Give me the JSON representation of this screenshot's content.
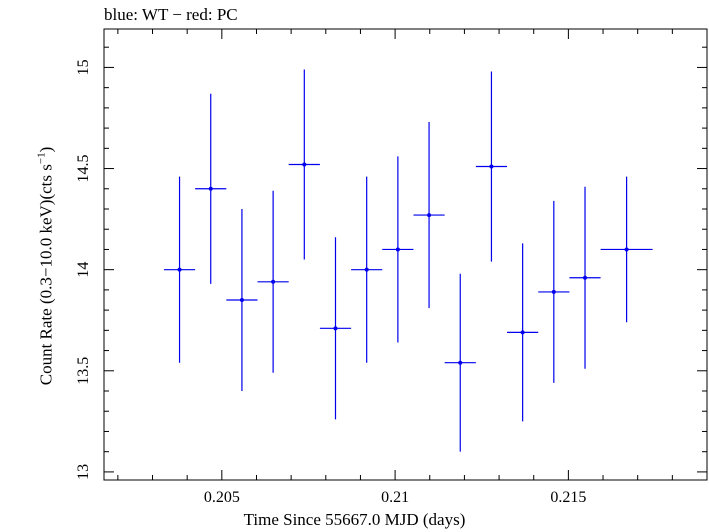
{
  "chart_data": {
    "type": "scatter",
    "title": "blue: WT − red: PC",
    "xlabel": "Time Since 55667.0 MJD (days)",
    "ylabel_main": "Count Rate (0.3−10.0 keV)(cts s",
    "ylabel_sup": "−1",
    "ylabel_end": ")",
    "xlim": [
      0.2016,
      0.219
    ],
    "ylim": [
      12.96,
      15.19
    ],
    "xticks": [
      0.205,
      0.21,
      0.215
    ],
    "xtick_labels": [
      "0.205",
      "0.21",
      "0.215"
    ],
    "yticks": [
      13,
      13.5,
      14,
      14.5,
      15
    ],
    "ytick_labels": [
      "13",
      "13.5",
      "14",
      "14.5",
      "15"
    ],
    "series": [
      {
        "color": "#0000ee",
        "points": [
          {
            "x": 0.20378,
            "y": 14.0,
            "xerr": 0.00045,
            "yerr": 0.46
          },
          {
            "x": 0.20468,
            "y": 14.4,
            "xerr": 0.00045,
            "yerr": 0.47
          },
          {
            "x": 0.20558,
            "y": 13.85,
            "xerr": 0.00045,
            "yerr": 0.45
          },
          {
            "x": 0.20648,
            "y": 13.94,
            "xerr": 0.00045,
            "yerr": 0.45
          },
          {
            "x": 0.20738,
            "y": 14.52,
            "xerr": 0.00045,
            "yerr": 0.47
          },
          {
            "x": 0.20828,
            "y": 13.71,
            "xerr": 0.00045,
            "yerr": 0.45
          },
          {
            "x": 0.20918,
            "y": 14.0,
            "xerr": 0.00045,
            "yerr": 0.46
          },
          {
            "x": 0.21008,
            "y": 14.1,
            "xerr": 0.00045,
            "yerr": 0.46
          },
          {
            "x": 0.21098,
            "y": 14.27,
            "xerr": 0.00045,
            "yerr": 0.46
          },
          {
            "x": 0.21188,
            "y": 13.54,
            "xerr": 0.00045,
            "yerr": 0.44
          },
          {
            "x": 0.21278,
            "y": 14.51,
            "xerr": 0.00045,
            "yerr": 0.47
          },
          {
            "x": 0.21368,
            "y": 13.69,
            "xerr": 0.00045,
            "yerr": 0.44
          },
          {
            "x": 0.21458,
            "y": 13.89,
            "xerr": 0.00045,
            "yerr": 0.45
          },
          {
            "x": 0.21548,
            "y": 13.96,
            "xerr": 0.00045,
            "yerr": 0.45
          },
          {
            "x": 0.21668,
            "y": 14.1,
            "xerr": 0.00075,
            "yerr": 0.36
          }
        ]
      }
    ],
    "grid": false,
    "legend": "none"
  }
}
